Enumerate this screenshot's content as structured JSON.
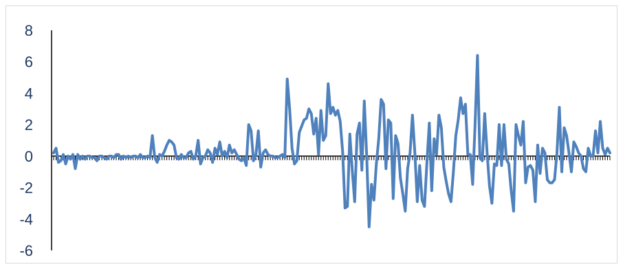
{
  "chart_data": {
    "type": "line",
    "title": "",
    "xlabel": "",
    "ylabel": "",
    "ylim": [
      -6,
      8
    ],
    "yticks": [
      8,
      6,
      4,
      2,
      0,
      -2,
      -4,
      -6
    ],
    "ytick_labels": [
      "8",
      "6",
      "4",
      "2",
      "0",
      "-2",
      "-4",
      "-6"
    ],
    "grid": false,
    "legend": "none",
    "series_color": "#4f81bd",
    "axis_color": "#000000",
    "series": [
      {
        "values": [
          0.2,
          0.5,
          -0.4,
          -0.3,
          0.1,
          -0.5,
          0.0,
          -0.2,
          0.1,
          -0.8,
          0.1,
          -0.2,
          0.0,
          -0.2,
          0.0,
          0.0,
          -0.1,
          -0.1,
          -0.3,
          0.0,
          0.0,
          -0.1,
          -0.2,
          0.0,
          0.0,
          -0.1,
          0.1,
          0.1,
          -0.2,
          0.0,
          -0.1,
          0.0,
          -0.1,
          0.0,
          0.0,
          -0.1,
          0.1,
          -0.1,
          -0.1,
          0.0,
          -0.1,
          1.3,
          -0.1,
          -0.4,
          0.1,
          0.0,
          0.3,
          0.7,
          1.0,
          0.9,
          0.7,
          -0.1,
          -0.2,
          0.1,
          -0.1,
          -0.1,
          0.2,
          0.3,
          -0.2,
          0.0,
          1.0,
          -0.5,
          -0.1,
          0.0,
          0.4,
          0.2,
          -0.4,
          0.5,
          0.1,
          0.9,
          0.0,
          0.3,
          -0.1,
          0.7,
          0.2,
          0.4,
          0.1,
          -0.2,
          -0.3,
          -0.1,
          -0.6,
          2.0,
          1.6,
          -0.3,
          0.1,
          1.6,
          -0.7,
          0.2,
          0.4,
          0.1,
          0.0,
          0.0,
          -0.1,
          -0.1,
          0.0,
          0.1,
          -0.1,
          4.9,
          3.0,
          0.5,
          -0.5,
          -0.3,
          1.5,
          1.9,
          2.3,
          2.4,
          3.0,
          2.7,
          1.4,
          2.4,
          0.1,
          2.9,
          1.0,
          1.3,
          4.6,
          2.7,
          3.1,
          2.6,
          2.9,
          2.2,
          0.3,
          -3.3,
          -3.2,
          1.4,
          -0.9,
          -2.9,
          1.4,
          2.1,
          -0.9,
          3.5,
          0.0,
          -4.5,
          -1.8,
          -2.8,
          -0.5,
          1.1,
          3.6,
          3.3,
          -0.8,
          2.3,
          2.1,
          -2.7,
          1.3,
          0.8,
          -1.4,
          -2.4,
          -3.5,
          -0.8,
          0.2,
          2.6,
          0.2,
          -2.9,
          -0.6,
          -2.8,
          -3.2,
          -0.4,
          2.1,
          -2.2,
          1.1,
          0.1,
          2.6,
          1.8,
          -0.7,
          -1.6,
          -2.4,
          -2.9,
          -1.0,
          1.3,
          2.3,
          3.7,
          2.7,
          3.3,
          0.1,
          0.1,
          -1.8,
          2.0,
          6.4,
          -0.1,
          -0.3,
          2.7,
          0.2,
          -1.9,
          -3.0,
          -0.5,
          -0.6,
          2.0,
          -0.6,
          2.0,
          -0.2,
          -0.5,
          -2.2,
          -3.5,
          2.0,
          1.3,
          0.7,
          2.2,
          -1.7,
          -0.7,
          -0.6,
          -0.9,
          -2.9,
          0.7,
          -1.1,
          0.5,
          0.2,
          -1.5,
          -1.7,
          -1.7,
          -1.5,
          0.2,
          3.1,
          -1.0,
          1.8,
          1.3,
          0.2,
          -1.0,
          0.9,
          0.6,
          0.2,
          0.0,
          -0.8,
          -1.0,
          0.5,
          0.0,
          0.0,
          1.6,
          0.2,
          2.2,
          0.5,
          0.1,
          0.5,
          0.2
        ]
      }
    ]
  }
}
